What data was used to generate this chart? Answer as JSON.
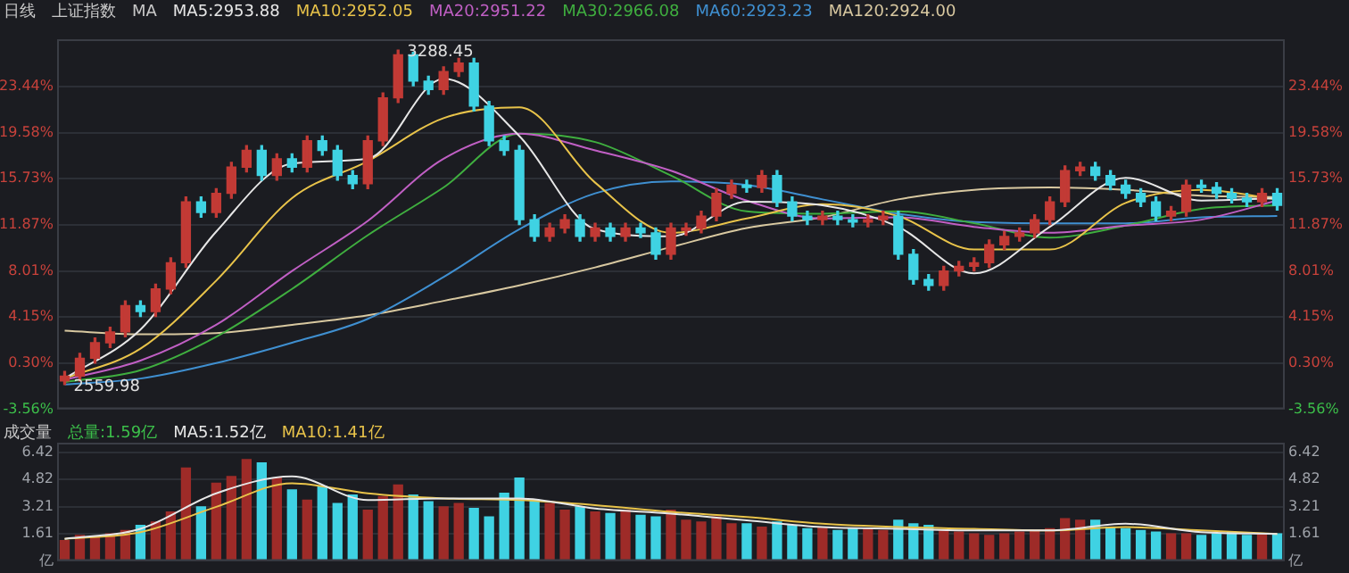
{
  "chart_data": [
    {
      "type": "candlestick",
      "title": "上证指数",
      "subtitle": "日线",
      "annotations": [
        "MA",
        "3288.45",
        "2559.98"
      ],
      "categories": [
        null,
        null,
        null,
        null,
        null,
        null,
        null,
        null,
        null,
        null,
        null,
        null,
        null,
        null,
        null,
        null,
        null,
        null,
        null,
        null,
        null,
        null,
        null,
        null,
        null,
        null,
        null,
        null,
        null,
        null,
        null,
        null,
        null,
        null,
        null,
        null,
        null,
        null,
        null,
        null,
        null,
        null,
        null,
        null,
        null,
        null,
        null,
        null,
        null,
        null,
        null,
        null,
        null,
        null,
        null,
        null,
        null,
        null,
        null,
        null,
        null,
        null,
        null,
        null,
        null,
        null,
        null,
        null,
        null,
        null,
        null,
        null,
        null,
        null,
        null,
        null,
        null,
        null,
        null,
        null,
        null
      ],
      "ohlc": [
        [
          -1.2,
          -0.4,
          -1.5,
          -0.8
        ],
        [
          -0.8,
          1.1,
          -1.2,
          0.7
        ],
        [
          0.7,
          2.4,
          0.3,
          2.0
        ],
        [
          2.0,
          3.3,
          1.6,
          2.9
        ],
        [
          2.9,
          5.5,
          2.5,
          5.1
        ],
        [
          5.1,
          5.5,
          4.2,
          4.6
        ],
        [
          4.6,
          6.9,
          4.2,
          6.5
        ],
        [
          6.5,
          9.1,
          6.1,
          8.7
        ],
        [
          8.7,
          14.2,
          8.3,
          13.8
        ],
        [
          13.8,
          14.2,
          12.5,
          12.9
        ],
        [
          12.9,
          14.9,
          12.5,
          14.5
        ],
        [
          14.5,
          17.1,
          14.1,
          16.7
        ],
        [
          16.7,
          18.5,
          16.3,
          18.1
        ],
        [
          18.1,
          18.5,
          15.6,
          16.0
        ],
        [
          16.0,
          17.8,
          15.6,
          17.4
        ],
        [
          17.4,
          17.8,
          16.3,
          16.7
        ],
        [
          16.7,
          19.3,
          16.3,
          18.9
        ],
        [
          18.9,
          19.3,
          17.7,
          18.1
        ],
        [
          18.1,
          18.5,
          15.6,
          16.0
        ],
        [
          16.0,
          16.4,
          14.9,
          15.3
        ],
        [
          15.3,
          19.3,
          14.9,
          18.9
        ],
        [
          18.9,
          22.9,
          18.5,
          22.5
        ],
        [
          22.5,
          26.5,
          22.1,
          26.1
        ],
        [
          26.1,
          26.3,
          23.5,
          23.9
        ],
        [
          23.9,
          24.3,
          22.8,
          23.2
        ],
        [
          23.2,
          25.1,
          22.8,
          24.7
        ],
        [
          24.7,
          25.8,
          24.3,
          25.4
        ],
        [
          25.4,
          25.8,
          21.4,
          21.8
        ],
        [
          21.8,
          22.2,
          18.5,
          18.9
        ],
        [
          18.9,
          19.3,
          17.7,
          18.1
        ],
        [
          18.1,
          18.5,
          11.9,
          12.3
        ],
        [
          12.3,
          12.7,
          10.5,
          10.9
        ],
        [
          10.9,
          12.0,
          10.5,
          11.6
        ],
        [
          11.6,
          12.7,
          11.2,
          12.3
        ],
        [
          12.3,
          12.7,
          10.5,
          10.9
        ],
        [
          10.9,
          12.0,
          10.5,
          11.6
        ],
        [
          11.6,
          12.0,
          10.5,
          10.9
        ],
        [
          10.9,
          12.0,
          10.5,
          11.6
        ],
        [
          11.6,
          12.0,
          10.8,
          11.2
        ],
        [
          11.2,
          11.6,
          9.0,
          9.4
        ],
        [
          9.4,
          12.0,
          9.0,
          11.6
        ],
        [
          11.4,
          12.0,
          11.0,
          11.6
        ],
        [
          11.6,
          13.0,
          11.2,
          12.6
        ],
        [
          12.6,
          14.9,
          12.2,
          14.5
        ],
        [
          14.5,
          15.6,
          14.1,
          15.2
        ],
        [
          15.2,
          15.6,
          14.6,
          15.0
        ],
        [
          15.0,
          16.4,
          14.6,
          16.0
        ],
        [
          16.0,
          16.4,
          13.4,
          13.8
        ],
        [
          13.8,
          14.2,
          12.2,
          12.6
        ],
        [
          12.6,
          13.0,
          11.9,
          12.3
        ],
        [
          12.3,
          13.0,
          11.9,
          12.6
        ],
        [
          12.6,
          13.0,
          11.9,
          12.3
        ],
        [
          12.3,
          12.7,
          11.7,
          12.1
        ],
        [
          12.1,
          12.7,
          11.7,
          12.3
        ],
        [
          12.3,
          13.0,
          11.9,
          12.6
        ],
        [
          12.6,
          13.0,
          9.0,
          9.4
        ],
        [
          9.4,
          9.8,
          6.9,
          7.3
        ],
        [
          7.3,
          7.7,
          6.4,
          6.8
        ],
        [
          6.8,
          8.4,
          6.4,
          8.0
        ],
        [
          8.0,
          8.8,
          7.6,
          8.4
        ],
        [
          8.4,
          9.1,
          8.0,
          8.7
        ],
        [
          8.7,
          10.6,
          8.3,
          10.2
        ],
        [
          10.2,
          11.3,
          9.8,
          10.9
        ],
        [
          10.9,
          11.6,
          10.5,
          11.2
        ],
        [
          11.2,
          12.7,
          10.8,
          12.3
        ],
        [
          12.3,
          14.2,
          11.9,
          13.8
        ],
        [
          13.8,
          16.8,
          13.4,
          16.4
        ],
        [
          16.4,
          17.1,
          16.0,
          16.7
        ],
        [
          16.7,
          17.1,
          15.6,
          16.0
        ],
        [
          16.0,
          16.4,
          14.8,
          15.2
        ],
        [
          15.2,
          15.6,
          14.1,
          14.5
        ],
        [
          14.5,
          14.9,
          13.4,
          13.8
        ],
        [
          13.8,
          14.2,
          12.2,
          12.6
        ],
        [
          12.6,
          13.4,
          12.2,
          13.0
        ],
        [
          13.0,
          15.6,
          12.6,
          15.2
        ],
        [
          15.2,
          15.6,
          14.6,
          15.0
        ],
        [
          15.0,
          15.4,
          14.1,
          14.5
        ],
        [
          14.5,
          14.9,
          13.7,
          14.1
        ],
        [
          14.1,
          14.5,
          13.4,
          13.8
        ],
        [
          13.8,
          14.9,
          13.4,
          14.5
        ],
        [
          14.5,
          14.9,
          13.1,
          13.5
        ]
      ],
      "colors": [
        "#c23a35",
        "#c23a35",
        "#c23a35",
        "#c23a35",
        "#c23a35",
        "#3fd2e3",
        "#c23a35",
        "#c23a35",
        "#c23a35",
        "#3fd2e3",
        "#c23a35",
        "#c23a35",
        "#c23a35",
        "#3fd2e3",
        "#c23a35",
        "#3fd2e3",
        "#c23a35",
        "#3fd2e3",
        "#3fd2e3",
        "#3fd2e3",
        "#c23a35",
        "#c23a35",
        "#c23a35",
        "#3fd2e3",
        "#3fd2e3",
        "#c23a35",
        "#c23a35",
        "#3fd2e3",
        "#3fd2e3",
        "#3fd2e3",
        "#3fd2e3",
        "#3fd2e3",
        "#c23a35",
        "#c23a35",
        "#3fd2e3",
        "#c23a35",
        "#3fd2e3",
        "#c23a35",
        "#3fd2e3",
        "#3fd2e3",
        "#c23a35",
        "#c23a35",
        "#c23a35",
        "#c23a35",
        "#c23a35",
        "#3fd2e3",
        "#c23a35",
        "#3fd2e3",
        "#3fd2e3",
        "#3fd2e3",
        "#c23a35",
        "#3fd2e3",
        "#3fd2e3",
        "#c23a35",
        "#c23a35",
        "#3fd2e3",
        "#3fd2e3",
        "#3fd2e3",
        "#c23a35",
        "#c23a35",
        "#c23a35",
        "#c23a35",
        "#c23a35",
        "#c23a35",
        "#c23a35",
        "#c23a35",
        "#c23a35",
        "#c23a35",
        "#3fd2e3",
        "#3fd2e3",
        "#3fd2e3",
        "#3fd2e3",
        "#3fd2e3",
        "#c23a35",
        "#c23a35",
        "#3fd2e3",
        "#3fd2e3",
        "#3fd2e3",
        "#3fd2e3",
        "#c23a35",
        "#3fd2e3"
      ],
      "series": [
        {
          "type": "line",
          "name": "MA5:2953.88",
          "color": "#e6e6e6",
          "values": [
            -1.0,
            null,
            null,
            null,
            null,
            3.1,
            null,
            null,
            null,
            null,
            11.3,
            null,
            null,
            null,
            null,
            17.0,
            null,
            null,
            null,
            null,
            17.4,
            null,
            null,
            null,
            null,
            24.1,
            null,
            null,
            null,
            null,
            19.3,
            null,
            null,
            null,
            null,
            11.5,
            null,
            null,
            null,
            null,
            10.9,
            null,
            null,
            null,
            null,
            13.8,
            null,
            null,
            null,
            null,
            13.5,
            null,
            null,
            null,
            null,
            11.7,
            null,
            null,
            null,
            null,
            7.8,
            null,
            null,
            null,
            null,
            11.7,
            null,
            null,
            null,
            null,
            15.8,
            null,
            null,
            null,
            null,
            13.9,
            null,
            null,
            null,
            null,
            14.1
          ]
        },
        {
          "type": "line",
          "name": "MA10:2952.05",
          "color": "#e8c34a",
          "values": [
            -1.0,
            null,
            null,
            null,
            null,
            1.5,
            null,
            null,
            null,
            null,
            7.2,
            null,
            null,
            null,
            null,
            14.1,
            null,
            null,
            null,
            null,
            17.2,
            null,
            null,
            null,
            null,
            20.8,
            null,
            null,
            null,
            null,
            21.7,
            null,
            null,
            null,
            null,
            15.4,
            null,
            null,
            null,
            null,
            11.2,
            null,
            null,
            null,
            null,
            12.4,
            null,
            null,
            null,
            null,
            13.6,
            null,
            null,
            null,
            null,
            12.6,
            null,
            null,
            null,
            null,
            9.8,
            null,
            null,
            null,
            null,
            9.8,
            null,
            null,
            null,
            null,
            13.7,
            null,
            null,
            null,
            null,
            14.8,
            null,
            null,
            null,
            null,
            14.0
          ]
        },
        {
          "type": "line",
          "name": "MA20:2951.22",
          "color": "#c05fc4",
          "values": [
            -1.1,
            null,
            null,
            null,
            null,
            0.5,
            null,
            null,
            null,
            null,
            3.5,
            null,
            null,
            null,
            null,
            8.0,
            null,
            null,
            null,
            null,
            12.2,
            null,
            null,
            null,
            null,
            17.4,
            null,
            null,
            null,
            null,
            19.5,
            null,
            null,
            null,
            null,
            18.1,
            null,
            null,
            null,
            null,
            16.4,
            null,
            null,
            null,
            null,
            13.9,
            null,
            null,
            null,
            null,
            12.4,
            null,
            null,
            null,
            null,
            12.5,
            null,
            null,
            null,
            null,
            11.7,
            null,
            null,
            null,
            null,
            11.2,
            null,
            null,
            null,
            null,
            11.8,
            null,
            null,
            null,
            null,
            12.3,
            null,
            null,
            null,
            null,
            13.9
          ]
        },
        {
          "type": "line",
          "name": "MA30:2966.08",
          "color": "#3fae3f",
          "values": [
            -1.3,
            null,
            null,
            null,
            null,
            -0.3,
            null,
            null,
            null,
            null,
            2.5,
            null,
            null,
            null,
            null,
            6.5,
            null,
            null,
            null,
            null,
            11.0,
            null,
            null,
            null,
            null,
            15.0,
            null,
            null,
            null,
            null,
            19.5,
            null,
            null,
            null,
            null,
            18.8,
            null,
            null,
            null,
            null,
            16.0,
            null,
            null,
            null,
            null,
            13.0,
            null,
            null,
            null,
            null,
            12.8,
            null,
            null,
            null,
            null,
            13.0,
            null,
            null,
            null,
            null,
            12.0,
            null,
            null,
            null,
            null,
            10.8,
            null,
            null,
            null,
            null,
            11.8,
            null,
            null,
            null,
            null,
            13.2,
            null,
            null,
            null,
            null,
            13.5
          ]
        },
        {
          "type": "line",
          "name": "MA60:2923.23",
          "color": "#3f8fd0",
          "values": [
            -1.5,
            null,
            null,
            null,
            null,
            -1.0,
            null,
            null,
            null,
            null,
            0.3,
            null,
            null,
            null,
            null,
            2.0,
            null,
            null,
            null,
            null,
            4.0,
            null,
            null,
            null,
            null,
            7.5,
            null,
            null,
            null,
            null,
            11.5,
            null,
            null,
            null,
            null,
            14.5,
            null,
            null,
            null,
            null,
            15.5,
            null,
            null,
            null,
            null,
            15.2,
            null,
            null,
            null,
            null,
            14.0,
            null,
            null,
            null,
            null,
            12.8,
            null,
            null,
            null,
            null,
            12.1,
            null,
            null,
            null,
            null,
            12.0,
            null,
            null,
            null,
            null,
            12.0,
            null,
            null,
            null,
            null,
            12.5,
            null,
            null,
            null,
            null,
            12.6
          ]
        },
        {
          "type": "line",
          "name": "MA120:2924.00",
          "color": "#d8c8a0",
          "values": [
            3.0,
            null,
            null,
            null,
            null,
            2.7,
            null,
            null,
            null,
            null,
            2.8,
            null,
            null,
            null,
            null,
            3.5,
            null,
            null,
            null,
            null,
            4.3,
            null,
            null,
            null,
            null,
            5.5,
            null,
            null,
            null,
            null,
            6.8,
            null,
            null,
            null,
            null,
            8.3,
            null,
            null,
            null,
            null,
            10.0,
            null,
            null,
            null,
            null,
            11.6,
            null,
            null,
            null,
            null,
            12.5,
            null,
            null,
            null,
            null,
            14.0,
            null,
            null,
            null,
            null,
            14.8,
            null,
            null,
            null,
            null,
            15.0,
            null,
            null,
            null,
            null,
            14.8,
            null,
            null,
            null,
            null,
            14.3,
            null,
            null,
            null,
            null,
            14.2
          ]
        }
      ],
      "ylim": [
        -3.56,
        27.4
      ],
      "yticks": [
        {
          "value": -3.56,
          "label": "-3.56%"
        },
        {
          "value": 0.3,
          "label": "0.30%"
        },
        {
          "value": 4.15,
          "label": "4.15%"
        },
        {
          "value": 8.01,
          "label": "8.01%"
        },
        {
          "value": 11.87,
          "label": "11.87%"
        },
        {
          "value": 15.73,
          "label": "15.73%"
        },
        {
          "value": 19.58,
          "label": "19.58%"
        },
        {
          "value": 23.44,
          "label": "23.44%"
        }
      ],
      "y2lim": [
        -3.56,
        27.4
      ],
      "y2ticks": [
        {
          "value": -3.56,
          "label": "-3.56%"
        },
        {
          "value": 0.3,
          "label": "0.30%"
        },
        {
          "value": 4.15,
          "label": "4.15%"
        },
        {
          "value": 8.01,
          "label": "8.01%"
        },
        {
          "value": 11.87,
          "label": "11.87%"
        },
        {
          "value": 15.73,
          "label": "15.73%"
        },
        {
          "value": 19.58,
          "label": "19.58%"
        },
        {
          "value": 23.44,
          "label": "23.44%"
        }
      ],
      "grid": "y",
      "legend": "top left",
      "tick_labels": "y"
    },
    {
      "type": "bar",
      "title": "成交量",
      "categories": [
        null,
        null,
        null,
        null,
        null,
        null,
        null,
        null,
        null,
        null,
        null,
        null,
        null,
        null,
        null,
        null,
        null,
        null,
        null,
        null,
        null,
        null,
        null,
        null,
        null,
        null,
        null,
        null,
        null,
        null,
        null,
        null,
        null,
        null,
        null,
        null,
        null,
        null,
        null,
        null,
        null,
        null,
        null,
        null,
        null,
        null,
        null,
        null,
        null,
        null,
        null,
        null,
        null,
        null,
        null,
        null,
        null,
        null,
        null,
        null,
        null,
        null,
        null,
        null,
        null,
        null,
        null,
        null,
        null,
        null,
        null,
        null,
        null,
        null,
        null,
        null,
        null,
        null,
        null,
        null,
        null
      ],
      "series": [
        {
          "type": "bar",
          "name": "总量:1.59亿",
          "colors": [
            "#9e2b28",
            "#9e2b28",
            "#9e2b28",
            "#9e2b28",
            "#9e2b28",
            "#3fd2e3",
            "#9e2b28",
            "#9e2b28",
            "#9e2b28",
            "#3fd2e3",
            "#9e2b28",
            "#9e2b28",
            "#9e2b28",
            "#3fd2e3",
            "#9e2b28",
            "#3fd2e3",
            "#9e2b28",
            "#3fd2e3",
            "#3fd2e3",
            "#3fd2e3",
            "#9e2b28",
            "#9e2b28",
            "#9e2b28",
            "#3fd2e3",
            "#3fd2e3",
            "#9e2b28",
            "#9e2b28",
            "#3fd2e3",
            "#3fd2e3",
            "#3fd2e3",
            "#3fd2e3",
            "#3fd2e3",
            "#9e2b28",
            "#9e2b28",
            "#3fd2e3",
            "#9e2b28",
            "#3fd2e3",
            "#9e2b28",
            "#3fd2e3",
            "#3fd2e3",
            "#9e2b28",
            "#9e2b28",
            "#9e2b28",
            "#9e2b28",
            "#9e2b28",
            "#3fd2e3",
            "#9e2b28",
            "#3fd2e3",
            "#3fd2e3",
            "#3fd2e3",
            "#9e2b28",
            "#3fd2e3",
            "#3fd2e3",
            "#9e2b28",
            "#9e2b28",
            "#3fd2e3",
            "#3fd2e3",
            "#3fd2e3",
            "#9e2b28",
            "#9e2b28",
            "#9e2b28",
            "#9e2b28",
            "#9e2b28",
            "#9e2b28",
            "#9e2b28",
            "#9e2b28",
            "#9e2b28",
            "#9e2b28",
            "#3fd2e3",
            "#3fd2e3",
            "#3fd2e3",
            "#3fd2e3",
            "#3fd2e3",
            "#9e2b28",
            "#9e2b28",
            "#3fd2e3",
            "#3fd2e3",
            "#3fd2e3",
            "#3fd2e3",
            "#9e2b28",
            "#3fd2e3"
          ],
          "values": [
            1.2,
            1.5,
            1.4,
            1.6,
            1.8,
            2.1,
            2.3,
            2.9,
            5.5,
            3.2,
            4.6,
            5.0,
            6.0,
            5.8,
            4.9,
            4.2,
            3.6,
            4.4,
            3.4,
            3.9,
            3.0,
            3.8,
            4.5,
            3.9,
            3.5,
            3.2,
            3.4,
            3.1,
            2.6,
            4.0,
            4.9,
            3.6,
            3.4,
            3.0,
            3.2,
            2.9,
            2.8,
            3.0,
            2.7,
            2.6,
            3.0,
            2.4,
            2.3,
            2.6,
            2.2,
            2.2,
            2.0,
            2.3,
            2.1,
            1.9,
            2.0,
            1.8,
            1.9,
            1.9,
            1.8,
            2.4,
            2.2,
            2.1,
            1.8,
            1.7,
            1.6,
            1.5,
            1.6,
            1.7,
            1.8,
            1.9,
            2.5,
            2.4,
            2.4,
            2.0,
            1.9,
            1.8,
            1.7,
            1.6,
            1.6,
            1.5,
            1.6,
            1.7,
            1.5,
            1.6,
            1.6
          ]
        },
        {
          "type": "line",
          "name": "MA5:1.52亿",
          "color": "#e6e6e6",
          "values": [
            1.3,
            null,
            null,
            null,
            null,
            1.9,
            null,
            null,
            null,
            null,
            4.0,
            null,
            null,
            null,
            null,
            5.0,
            null,
            null,
            null,
            null,
            3.6,
            null,
            null,
            null,
            null,
            3.7,
            null,
            null,
            null,
            null,
            3.7,
            null,
            null,
            null,
            null,
            3.1,
            null,
            null,
            null,
            null,
            2.8,
            null,
            null,
            null,
            null,
            2.4,
            null,
            null,
            null,
            null,
            2.0,
            null,
            null,
            null,
            null,
            1.9,
            null,
            null,
            null,
            null,
            1.8,
            null,
            null,
            null,
            null,
            1.8,
            null,
            null,
            null,
            null,
            2.2,
            null,
            null,
            null,
            null,
            1.7,
            null,
            null,
            null,
            null,
            1.6
          ]
        },
        {
          "type": "line",
          "name": "MA10:1.41亿",
          "color": "#e8c34a",
          "values": [
            1.3,
            null,
            null,
            null,
            null,
            1.7,
            null,
            null,
            null,
            null,
            3.2,
            null,
            null,
            null,
            null,
            4.6,
            null,
            null,
            null,
            null,
            4.0,
            null,
            null,
            null,
            null,
            3.7,
            null,
            null,
            null,
            null,
            3.6,
            null,
            null,
            null,
            null,
            3.3,
            null,
            null,
            null,
            null,
            2.9,
            null,
            null,
            null,
            null,
            2.6,
            null,
            null,
            null,
            null,
            2.2,
            null,
            null,
            null,
            null,
            2.0,
            null,
            null,
            null,
            null,
            1.9,
            null,
            null,
            null,
            null,
            1.8,
            null,
            null,
            null,
            null,
            2.0,
            null,
            null,
            null,
            null,
            1.8,
            null,
            null,
            null,
            null,
            1.6
          ]
        }
      ],
      "ylim": [
        0,
        7.0
      ],
      "yticks": [
        {
          "value": 0,
          "label": "亿"
        },
        1.61,
        3.21,
        4.82,
        6.42
      ],
      "y2lim": [
        0,
        7.0
      ],
      "y2ticks": [
        {
          "value": 0,
          "label": "亿"
        },
        1.61,
        3.21,
        4.82,
        6.42
      ],
      "grid": "y",
      "legend": "top left",
      "tick_labels": "y"
    }
  ]
}
